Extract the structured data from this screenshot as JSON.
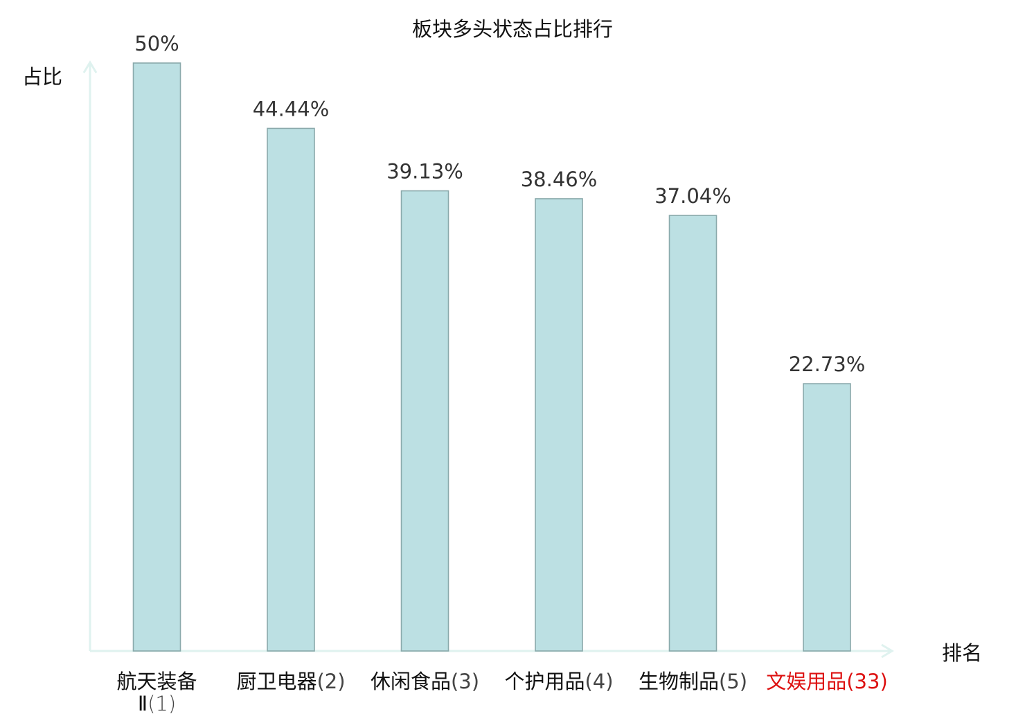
{
  "chart_data": {
    "type": "bar",
    "title": "板块多头状态占比排行",
    "ylabel": "占比",
    "xlabel": "排名",
    "ylim": [
      0,
      50
    ],
    "grid": false,
    "categories": [
      {
        "name": "航天装备Ⅱ",
        "rank": "(1)",
        "highlight": false
      },
      {
        "name": "厨卫电器",
        "rank": "(2)",
        "highlight": false
      },
      {
        "name": "休闲食品",
        "rank": "(3)",
        "highlight": false
      },
      {
        "name": "个护用品",
        "rank": "(4)",
        "highlight": false
      },
      {
        "name": "生物制品",
        "rank": "(5)",
        "highlight": false
      },
      {
        "name": "文娱用品",
        "rank": "(33)",
        "highlight": true
      }
    ],
    "values": [
      50,
      44.44,
      39.13,
      38.46,
      37.04,
      22.73
    ],
    "value_labels": [
      "50%",
      "44.44%",
      "39.13%",
      "38.46%",
      "37.04%",
      "22.73%"
    ]
  },
  "colors": {
    "bar_fill": "#bce0e3",
    "bar_stroke": "#8aa9ab",
    "axis": "#dff2ef",
    "text": "#333333",
    "label": "#111111",
    "highlight": "#dd1111"
  }
}
